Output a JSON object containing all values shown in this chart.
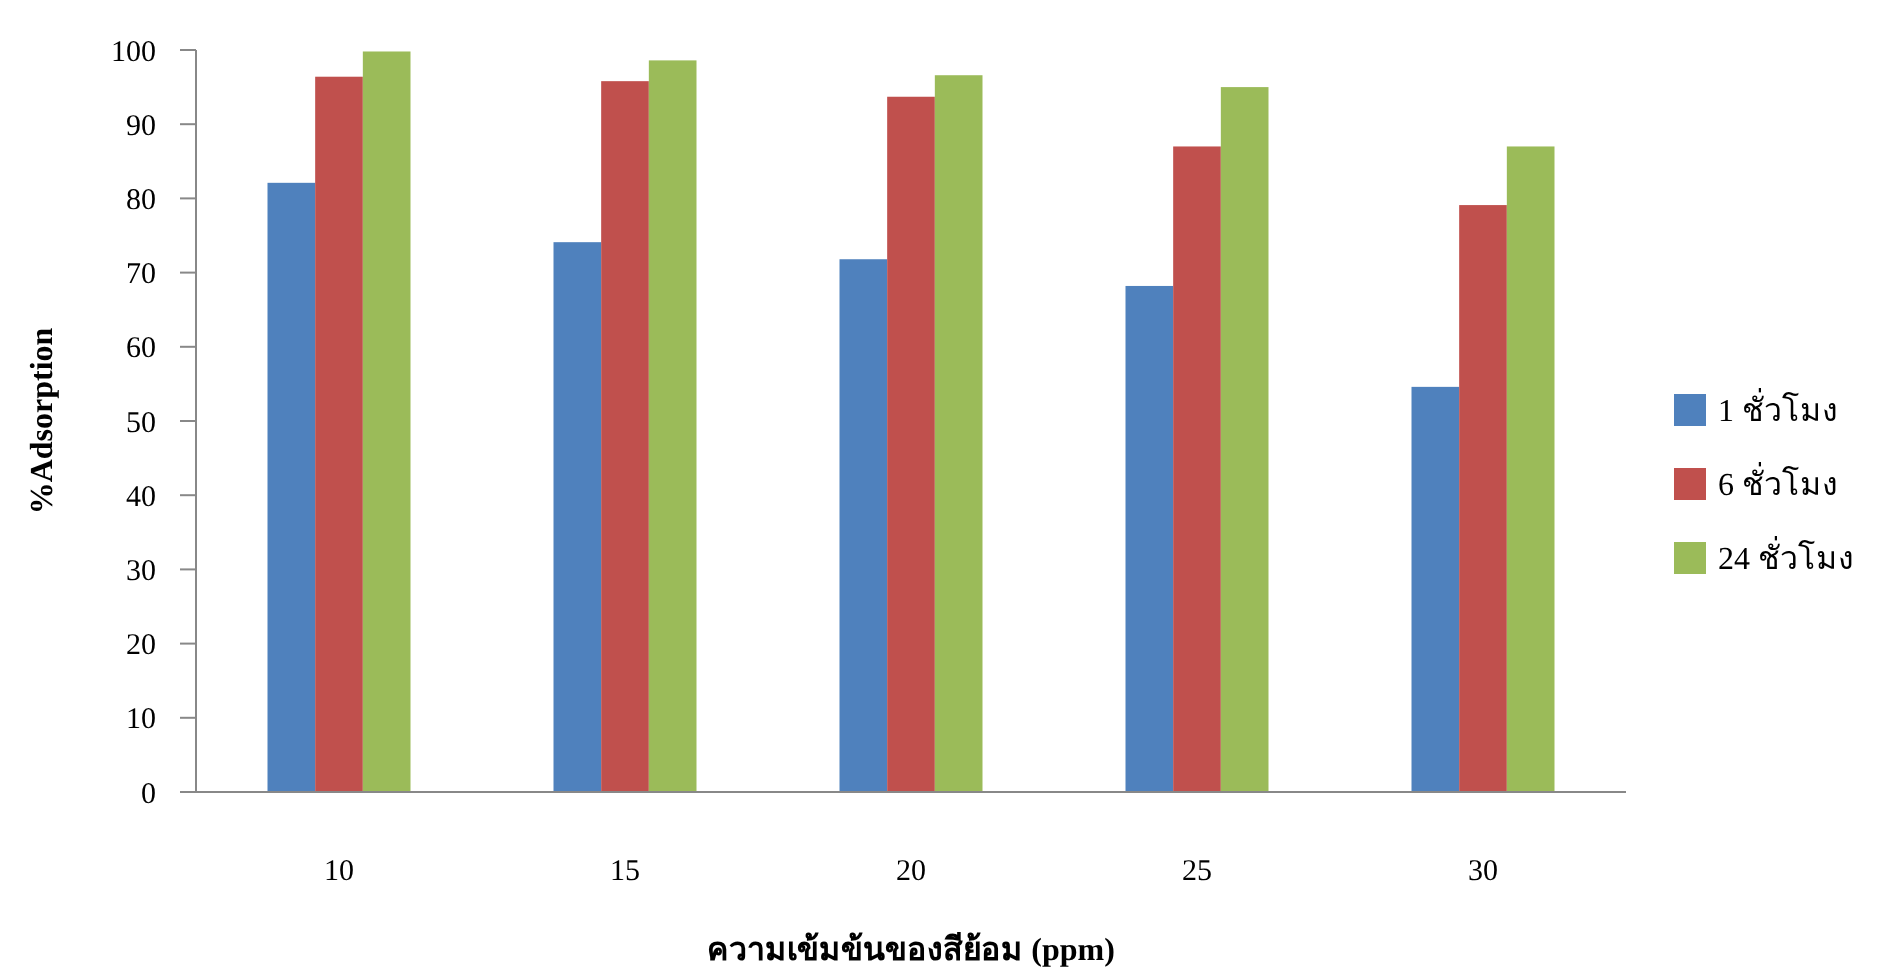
{
  "chart_data": {
    "type": "bar",
    "xlabel": "ความเข้มข้นของสีย้อม (ppm)",
    "ylabel": "%Adsorption",
    "categories": [
      "10",
      "15",
      "20",
      "25",
      "30"
    ],
    "series": [
      {
        "name": "1 ชั่วโมง",
        "color": "#4f81bd",
        "values": [
          82.1,
          74.1,
          71.8,
          68.2,
          54.6
        ]
      },
      {
        "name": "6 ชั่วโมง",
        "color": "#c0504d",
        "values": [
          96.4,
          95.8,
          93.7,
          87.0,
          79.1
        ]
      },
      {
        "name": "24 ชั่วโมง",
        "color": "#9bbb59",
        "values": [
          99.8,
          98.6,
          96.6,
          95.0,
          87.0
        ]
      }
    ],
    "ylim": [
      0,
      100
    ],
    "yticks": [
      0,
      10,
      20,
      30,
      40,
      50,
      60,
      70,
      80,
      90,
      100
    ],
    "grid": false,
    "legend": "right"
  }
}
